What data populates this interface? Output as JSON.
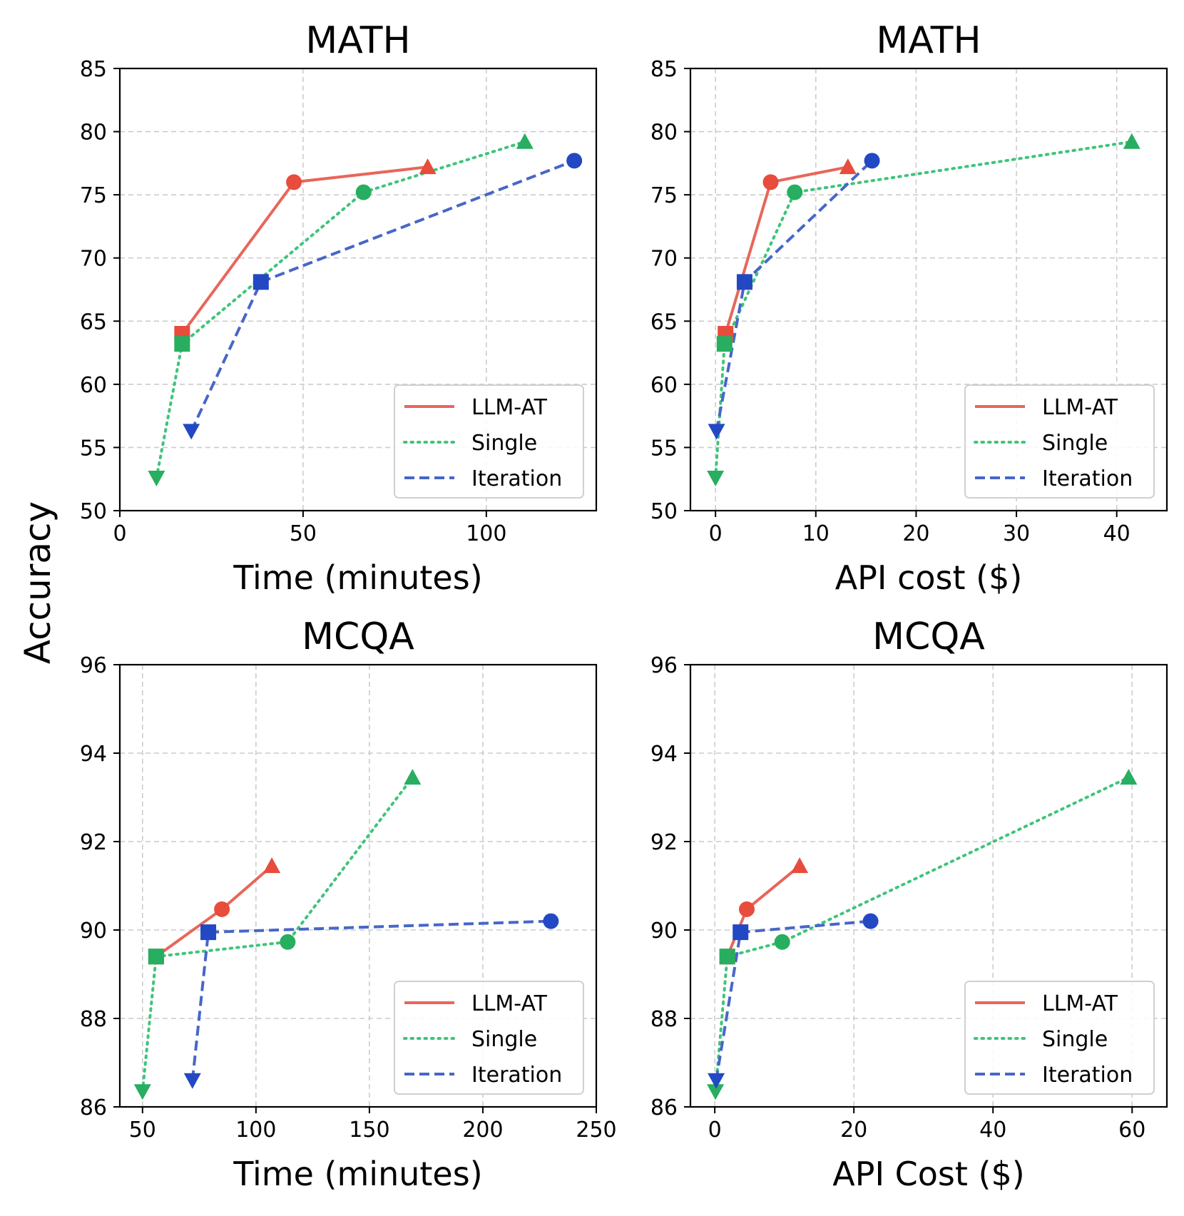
{
  "figure": {
    "ylabel": "Accuracy",
    "legend_position": "lower-right"
  },
  "chart_data": [
    {
      "type": "line",
      "title": "MATH",
      "xlabel": "Time (minutes)",
      "ylabel": "Accuracy",
      "xlim": [
        0,
        130
      ],
      "ylim": [
        50,
        85
      ],
      "xticks": [
        0,
        50,
        100
      ],
      "yticks": [
        50,
        55,
        60,
        65,
        70,
        75,
        80,
        85
      ],
      "grid": true,
      "series": [
        {
          "name": "LLM-AT",
          "color": "#e8665a",
          "marker_color": "#e74c3c",
          "style": "solid",
          "points": [
            {
              "x": 17,
              "y": 64.0,
              "marker": "square"
            },
            {
              "x": 47.5,
              "y": 76.0,
              "marker": "circle"
            },
            {
              "x": 84,
              "y": 77.2,
              "marker": "triangle-up"
            }
          ]
        },
        {
          "name": "Single",
          "color": "#3ec47a",
          "marker_color": "#27ae60",
          "style": "dotted",
          "points": [
            {
              "x": 10,
              "y": 52.6,
              "marker": "triangle-down"
            },
            {
              "x": 17,
              "y": 63.2,
              "marker": "square"
            },
            {
              "x": 66.5,
              "y": 75.2,
              "marker": "circle"
            },
            {
              "x": 110.5,
              "y": 79.2,
              "marker": "triangle-up"
            }
          ]
        },
        {
          "name": "Iteration",
          "color": "#4766c8",
          "marker_color": "#2348c4",
          "style": "dashed",
          "points": [
            {
              "x": 19.5,
              "y": 56.3,
              "marker": "triangle-down"
            },
            {
              "x": 38.5,
              "y": 68.1,
              "marker": "square"
            },
            {
              "x": 124,
              "y": 77.7,
              "marker": "circle"
            }
          ]
        }
      ]
    },
    {
      "type": "line",
      "title": "MATH",
      "xlabel": "API cost ($)",
      "ylabel": "Accuracy",
      "xlim": [
        -2.5,
        45
      ],
      "ylim": [
        50,
        85
      ],
      "xticks": [
        0,
        10,
        20,
        30,
        40
      ],
      "yticks": [
        50,
        55,
        60,
        65,
        70,
        75,
        80,
        85
      ],
      "grid": true,
      "series": [
        {
          "name": "LLM-AT",
          "color": "#e8665a",
          "marker_color": "#e74c3c",
          "style": "solid",
          "points": [
            {
              "x": 1.0,
              "y": 64.0,
              "marker": "square"
            },
            {
              "x": 5.5,
              "y": 76.0,
              "marker": "circle"
            },
            {
              "x": 13.2,
              "y": 77.2,
              "marker": "triangle-up"
            }
          ]
        },
        {
          "name": "Single",
          "color": "#3ec47a",
          "marker_color": "#27ae60",
          "style": "dotted",
          "points": [
            {
              "x": 0.0,
              "y": 52.6,
              "marker": "triangle-down"
            },
            {
              "x": 0.9,
              "y": 63.2,
              "marker": "square"
            },
            {
              "x": 7.9,
              "y": 75.2,
              "marker": "circle"
            },
            {
              "x": 41.5,
              "y": 79.2,
              "marker": "triangle-up"
            }
          ]
        },
        {
          "name": "Iteration",
          "color": "#4766c8",
          "marker_color": "#2348c4",
          "style": "dashed",
          "points": [
            {
              "x": 0.1,
              "y": 56.3,
              "marker": "triangle-down"
            },
            {
              "x": 2.9,
              "y": 68.1,
              "marker": "square"
            },
            {
              "x": 15.6,
              "y": 77.7,
              "marker": "circle"
            }
          ]
        }
      ]
    },
    {
      "type": "line",
      "title": "MCQA",
      "xlabel": "Time (minutes)",
      "ylabel": "Accuracy",
      "xlim": [
        40,
        250
      ],
      "ylim": [
        86,
        96
      ],
      "xticks": [
        50,
        100,
        150,
        200,
        250
      ],
      "yticks": [
        86,
        88,
        90,
        92,
        94,
        96
      ],
      "grid": true,
      "series": [
        {
          "name": "LLM-AT",
          "color": "#e8665a",
          "marker_color": "#e74c3c",
          "style": "solid",
          "points": [
            {
              "x": 56,
              "y": 89.4,
              "marker": "square"
            },
            {
              "x": 85,
              "y": 90.47,
              "marker": "circle"
            },
            {
              "x": 107,
              "y": 91.45,
              "marker": "triangle-up"
            }
          ]
        },
        {
          "name": "Single",
          "color": "#3ec47a",
          "marker_color": "#27ae60",
          "style": "dotted",
          "points": [
            {
              "x": 50,
              "y": 86.35,
              "marker": "triangle-down"
            },
            {
              "x": 56,
              "y": 89.4,
              "marker": "square"
            },
            {
              "x": 114,
              "y": 89.73,
              "marker": "circle"
            },
            {
              "x": 169,
              "y": 93.45,
              "marker": "triangle-up"
            }
          ]
        },
        {
          "name": "Iteration",
          "color": "#4766c8",
          "marker_color": "#2348c4",
          "style": "dashed",
          "points": [
            {
              "x": 72,
              "y": 86.6,
              "marker": "triangle-down"
            },
            {
              "x": 79,
              "y": 89.95,
              "marker": "square"
            },
            {
              "x": 230,
              "y": 90.2,
              "marker": "circle"
            }
          ]
        }
      ]
    },
    {
      "type": "line",
      "title": "MCQA",
      "xlabel": "API Cost ($)",
      "ylabel": "Accuracy",
      "xlim": [
        -3.5,
        65
      ],
      "ylim": [
        86,
        96
      ],
      "xticks": [
        0,
        20,
        40,
        60
      ],
      "yticks": [
        86,
        88,
        90,
        92,
        94,
        96
      ],
      "grid": true,
      "series": [
        {
          "name": "LLM-AT",
          "color": "#e8665a",
          "marker_color": "#e74c3c",
          "style": "solid",
          "points": [
            {
              "x": 1.8,
              "y": 89.4,
              "marker": "square"
            },
            {
              "x": 4.6,
              "y": 90.47,
              "marker": "circle"
            },
            {
              "x": 12.2,
              "y": 91.45,
              "marker": "triangle-up"
            }
          ]
        },
        {
          "name": "Single",
          "color": "#3ec47a",
          "marker_color": "#27ae60",
          "style": "dotted",
          "points": [
            {
              "x": 0.1,
              "y": 86.35,
              "marker": "triangle-down"
            },
            {
              "x": 1.8,
              "y": 89.4,
              "marker": "square"
            },
            {
              "x": 9.7,
              "y": 89.73,
              "marker": "circle"
            },
            {
              "x": 59.5,
              "y": 93.45,
              "marker": "triangle-up"
            }
          ]
        },
        {
          "name": "Iteration",
          "color": "#4766c8",
          "marker_color": "#2348c4",
          "style": "dashed",
          "points": [
            {
              "x": 0.2,
              "y": 86.6,
              "marker": "triangle-down"
            },
            {
              "x": 3.7,
              "y": 89.95,
              "marker": "square"
            },
            {
              "x": 22.4,
              "y": 90.2,
              "marker": "circle"
            }
          ]
        }
      ]
    }
  ]
}
